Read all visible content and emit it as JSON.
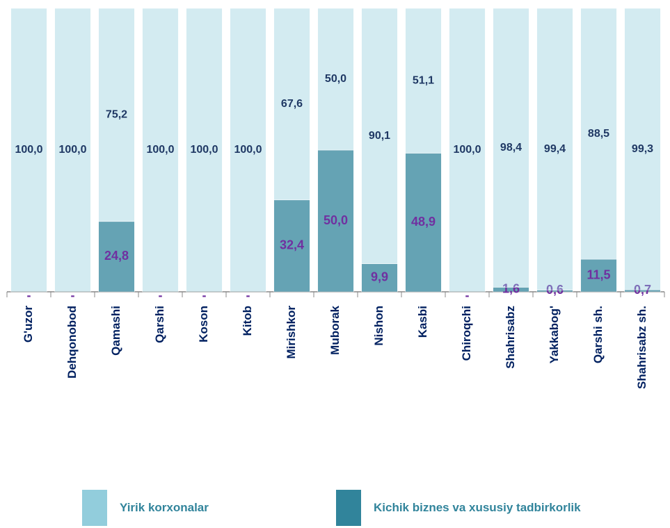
{
  "chart_data": {
    "type": "stacked_bar",
    "categories": [
      "G'uzor",
      "Dehqonobod",
      "Qamashi",
      "Qarshi",
      "Koson",
      "Kitob",
      "Mirishkor",
      "Muborak",
      "Nishon",
      "Kasbi",
      "Chiroqchi",
      "Shahrisabz",
      "Yakkabog'",
      "Qarshi sh.",
      "Shahrisabz sh."
    ],
    "ylim": [
      0,
      100
    ],
    "legend": "bottom",
    "series": [
      {
        "name": "Kichik biznes va xususiy tadbirkorlik",
        "color": "#31849b",
        "values": [
          0,
          0,
          24.8,
          0,
          0,
          0,
          32.4,
          50.0,
          9.9,
          48.9,
          0,
          1.6,
          0.6,
          11.5,
          0.7
        ],
        "value_labels": [
          "-",
          "-",
          "24,8",
          "-",
          "-",
          "-",
          "32,4",
          "50,0",
          "9,9",
          "48,9",
          "-",
          "1,6",
          "0,6",
          "11,5",
          "0,7"
        ]
      },
      {
        "name": "Yirik korxonalar",
        "color": "#92cddc",
        "values": [
          100.0,
          100.0,
          75.2,
          100.0,
          100.0,
          100.0,
          67.6,
          50.0,
          90.1,
          51.1,
          100.0,
          98.4,
          99.4,
          88.5,
          99.3
        ],
        "value_labels": [
          "100,0",
          "100,0",
          "75,2",
          "100,0",
          "100,0",
          "100,0",
          "67,6",
          "50,0",
          "90,1",
          "51,1",
          "100,0",
          "98,4",
          "99,4",
          "88,5",
          "99,3"
        ]
      }
    ]
  }
}
